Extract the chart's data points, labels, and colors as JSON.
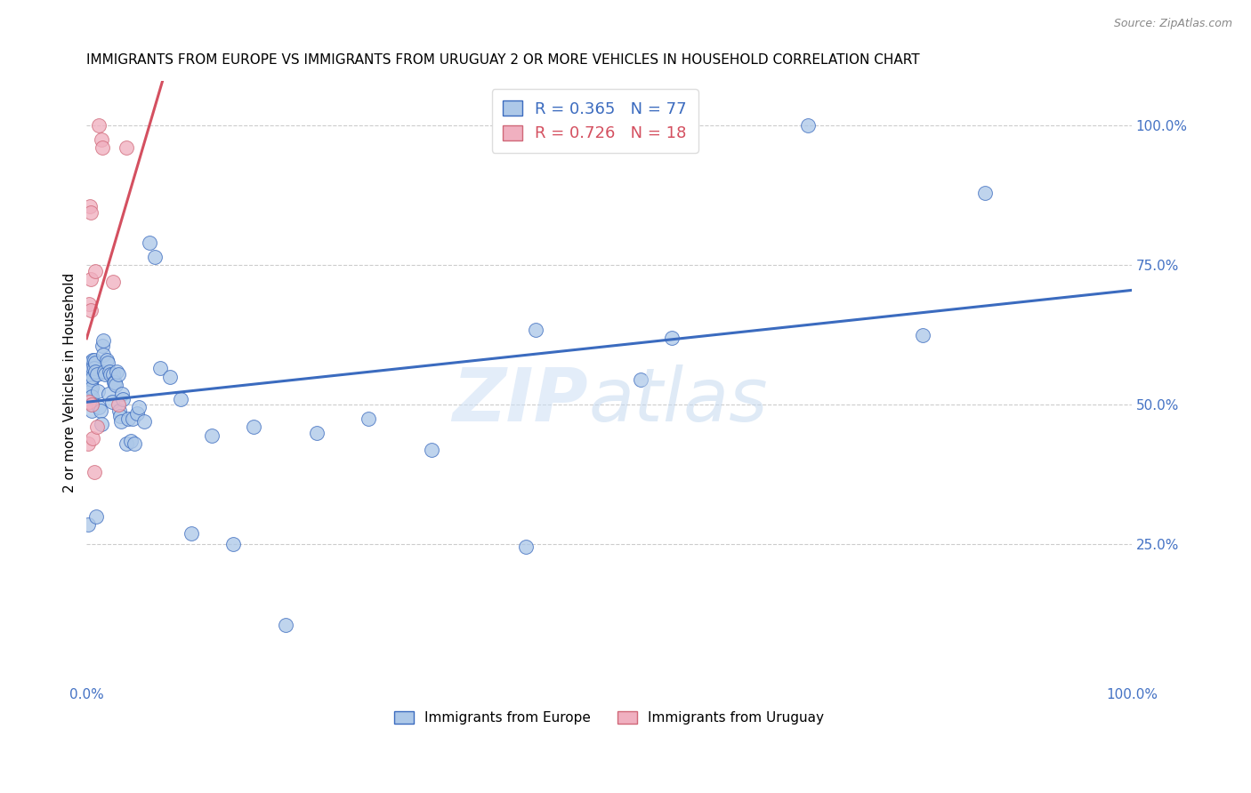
{
  "title": "IMMIGRANTS FROM EUROPE VS IMMIGRANTS FROM URUGUAY 2 OR MORE VEHICLES IN HOUSEHOLD CORRELATION CHART",
  "source": "Source: ZipAtlas.com",
  "ylabel": "2 or more Vehicles in Household",
  "legend_label1": "Immigrants from Europe",
  "legend_label2": "Immigrants from Uruguay",
  "R_europe": 0.365,
  "N_europe": 77,
  "R_uruguay": 0.726,
  "N_uruguay": 18,
  "color_europe": "#adc8e8",
  "color_uruguay": "#f0b0c0",
  "line_color_europe": "#3b6bbf",
  "line_color_uruguay": "#d45060",
  "ytick_labels": [
    "100.0%",
    "75.0%",
    "50.0%",
    "25.0%"
  ],
  "ytick_vals": [
    1.0,
    0.75,
    0.5,
    0.25
  ],
  "europe_x": [
    0.001,
    0.002,
    0.003,
    0.003,
    0.004,
    0.004,
    0.004,
    0.005,
    0.005,
    0.005,
    0.005,
    0.005,
    0.005,
    0.005,
    0.006,
    0.006,
    0.006,
    0.007,
    0.007,
    0.008,
    0.008,
    0.009,
    0.01,
    0.011,
    0.012,
    0.013,
    0.014,
    0.015,
    0.016,
    0.016,
    0.017,
    0.018,
    0.019,
    0.02,
    0.021,
    0.022,
    0.023,
    0.024,
    0.025,
    0.026,
    0.027,
    0.028,
    0.029,
    0.03,
    0.031,
    0.032,
    0.033,
    0.034,
    0.035,
    0.038,
    0.04,
    0.042,
    0.044,
    0.046,
    0.048,
    0.05,
    0.055,
    0.06,
    0.065,
    0.07,
    0.08,
    0.09,
    0.1,
    0.12,
    0.14,
    0.16,
    0.19,
    0.22,
    0.27,
    0.33,
    0.42,
    0.43,
    0.53,
    0.56,
    0.69,
    0.8,
    0.86
  ],
  "europe_y": [
    0.285,
    0.575,
    0.555,
    0.54,
    0.54,
    0.525,
    0.51,
    0.575,
    0.56,
    0.545,
    0.53,
    0.515,
    0.5,
    0.49,
    0.58,
    0.565,
    0.55,
    0.58,
    0.565,
    0.575,
    0.56,
    0.3,
    0.555,
    0.525,
    0.495,
    0.49,
    0.465,
    0.605,
    0.615,
    0.59,
    0.56,
    0.555,
    0.58,
    0.575,
    0.52,
    0.56,
    0.555,
    0.505,
    0.555,
    0.54,
    0.54,
    0.535,
    0.56,
    0.555,
    0.49,
    0.48,
    0.47,
    0.52,
    0.51,
    0.43,
    0.475,
    0.435,
    0.475,
    0.43,
    0.485,
    0.495,
    0.47,
    0.79,
    0.765,
    0.565,
    0.55,
    0.51,
    0.27,
    0.445,
    0.25,
    0.46,
    0.105,
    0.45,
    0.475,
    0.42,
    0.245,
    0.635,
    0.545,
    0.62,
    1.0,
    0.625,
    0.88
  ],
  "uruguay_x": [
    0.001,
    0.002,
    0.002,
    0.003,
    0.004,
    0.004,
    0.004,
    0.005,
    0.006,
    0.007,
    0.008,
    0.01,
    0.012,
    0.014,
    0.015,
    0.025,
    0.03,
    0.038
  ],
  "uruguay_y": [
    0.43,
    0.505,
    0.68,
    0.855,
    0.725,
    0.845,
    0.67,
    0.5,
    0.44,
    0.38,
    0.74,
    0.46,
    1.0,
    0.975,
    0.96,
    0.72,
    0.5,
    0.96
  ],
  "xlim": [
    0.0,
    1.0
  ],
  "ylim": [
    0.0,
    1.08
  ],
  "figsize": [
    14.06,
    8.92
  ],
  "dpi": 100
}
